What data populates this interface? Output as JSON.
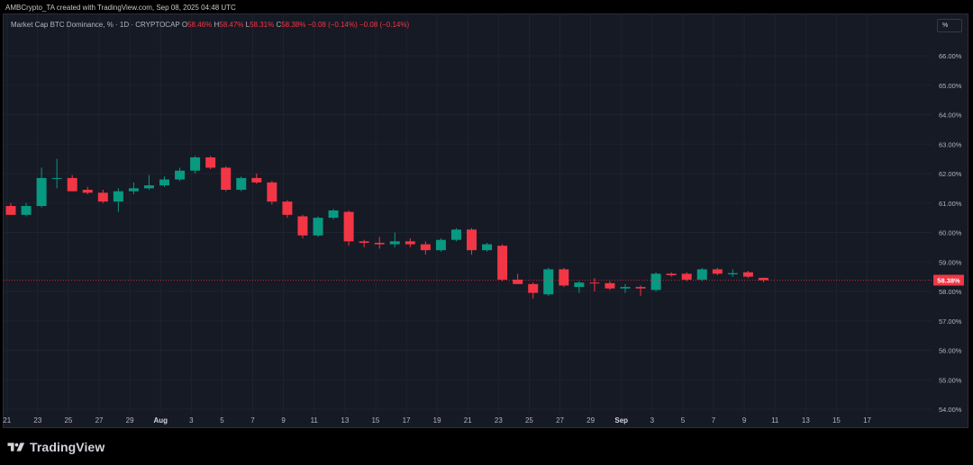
{
  "header": {
    "caption": "AMBCrypto_TA created with TradingView.com, Sep 08, 2025 04:48 UTC"
  },
  "legend": {
    "symbol": "Market Cap BTC Dominance, % · 1D · CRYPTOCAP",
    "o_label": "O",
    "o_value": "58.46%",
    "h_label": "H",
    "h_value": "58.47%",
    "l_label": "L",
    "l_value": "58.31%",
    "c_label": "C",
    "c_value": "58.38%",
    "change": "−0.08 (−0.14%)",
    "change2": "−0.08 (−0.14%)"
  },
  "unit_button": "%",
  "brand": {
    "name": "TradingView"
  },
  "colors": {
    "up": "#089981",
    "down": "#f23645",
    "background": "#161a25",
    "grid": "#1f2330"
  },
  "chart_data": {
    "type": "candlestick",
    "title": "Market Cap BTC Dominance, % · 1D · CRYPTOCAP",
    "ylabel": "%",
    "ylim": [
      53.9,
      66.7
    ],
    "y_ticks": [
      "66.00%",
      "65.00%",
      "64.00%",
      "63.00%",
      "62.00%",
      "61.00%",
      "60.00%",
      "59.00%",
      "58.00%",
      "57.00%",
      "56.00%",
      "55.00%",
      "54.00%"
    ],
    "x_ticks": [
      "21",
      "23",
      "25",
      "27",
      "29",
      "Aug",
      "3",
      "5",
      "7",
      "9",
      "11",
      "13",
      "15",
      "17",
      "19",
      "21",
      "23",
      "25",
      "27",
      "29",
      "Sep",
      "3",
      "5",
      "7",
      "9",
      "11",
      "13",
      "15",
      "17"
    ],
    "last_price_label": "58.38%",
    "candles": [
      {
        "o": 60.9,
        "h": 61.0,
        "l": 60.6,
        "c": 60.6
      },
      {
        "o": 60.6,
        "h": 61.0,
        "l": 60.55,
        "c": 60.9
      },
      {
        "o": 60.9,
        "h": 62.2,
        "l": 60.85,
        "c": 61.85
      },
      {
        "o": 61.85,
        "h": 62.5,
        "l": 61.5,
        "c": 61.85
      },
      {
        "o": 61.85,
        "h": 61.95,
        "l": 61.4,
        "c": 61.4
      },
      {
        "o": 61.45,
        "h": 61.55,
        "l": 61.3,
        "c": 61.35
      },
      {
        "o": 61.35,
        "h": 61.45,
        "l": 61.0,
        "c": 61.05
      },
      {
        "o": 61.05,
        "h": 61.5,
        "l": 60.7,
        "c": 61.4
      },
      {
        "o": 61.4,
        "h": 61.7,
        "l": 61.3,
        "c": 61.5
      },
      {
        "o": 61.5,
        "h": 61.95,
        "l": 61.45,
        "c": 61.6
      },
      {
        "o": 61.6,
        "h": 61.9,
        "l": 61.55,
        "c": 61.8
      },
      {
        "o": 61.8,
        "h": 62.2,
        "l": 61.75,
        "c": 62.1
      },
      {
        "o": 62.1,
        "h": 62.6,
        "l": 62.0,
        "c": 62.55
      },
      {
        "o": 62.55,
        "h": 62.6,
        "l": 62.15,
        "c": 62.2
      },
      {
        "o": 62.2,
        "h": 62.25,
        "l": 61.4,
        "c": 61.45
      },
      {
        "o": 61.45,
        "h": 61.9,
        "l": 61.4,
        "c": 61.85
      },
      {
        "o": 61.85,
        "h": 62.0,
        "l": 61.65,
        "c": 61.7
      },
      {
        "o": 61.7,
        "h": 61.75,
        "l": 60.95,
        "c": 61.05
      },
      {
        "o": 61.05,
        "h": 61.1,
        "l": 60.5,
        "c": 60.6
      },
      {
        "o": 60.55,
        "h": 60.6,
        "l": 59.8,
        "c": 59.9
      },
      {
        "o": 59.9,
        "h": 60.55,
        "l": 59.85,
        "c": 60.5
      },
      {
        "o": 60.5,
        "h": 60.8,
        "l": 60.45,
        "c": 60.75
      },
      {
        "o": 60.7,
        "h": 60.75,
        "l": 59.55,
        "c": 59.7
      },
      {
        "o": 59.7,
        "h": 59.75,
        "l": 59.5,
        "c": 59.65
      },
      {
        "o": 59.65,
        "h": 59.85,
        "l": 59.45,
        "c": 59.6
      },
      {
        "o": 59.6,
        "h": 60.0,
        "l": 59.5,
        "c": 59.7
      },
      {
        "o": 59.7,
        "h": 59.8,
        "l": 59.5,
        "c": 59.6
      },
      {
        "o": 59.6,
        "h": 59.7,
        "l": 59.25,
        "c": 59.4
      },
      {
        "o": 59.4,
        "h": 59.8,
        "l": 59.35,
        "c": 59.75
      },
      {
        "o": 59.75,
        "h": 60.15,
        "l": 59.7,
        "c": 60.1
      },
      {
        "o": 60.1,
        "h": 60.15,
        "l": 59.25,
        "c": 59.4
      },
      {
        "o": 59.4,
        "h": 59.65,
        "l": 59.35,
        "c": 59.6
      },
      {
        "o": 59.55,
        "h": 59.6,
        "l": 58.35,
        "c": 58.4
      },
      {
        "o": 58.4,
        "h": 58.6,
        "l": 58.25,
        "c": 58.25
      },
      {
        "o": 58.25,
        "h": 58.3,
        "l": 57.75,
        "c": 57.95
      },
      {
        "o": 57.9,
        "h": 58.8,
        "l": 57.85,
        "c": 58.75
      },
      {
        "o": 58.75,
        "h": 58.8,
        "l": 58.15,
        "c": 58.2
      },
      {
        "o": 58.15,
        "h": 58.35,
        "l": 57.95,
        "c": 58.3
      },
      {
        "o": 58.3,
        "h": 58.45,
        "l": 58.0,
        "c": 58.28
      },
      {
        "o": 58.28,
        "h": 58.35,
        "l": 58.05,
        "c": 58.1
      },
      {
        "o": 58.1,
        "h": 58.25,
        "l": 57.95,
        "c": 58.15
      },
      {
        "o": 58.15,
        "h": 58.2,
        "l": 57.85,
        "c": 58.1
      },
      {
        "o": 58.05,
        "h": 58.65,
        "l": 58.0,
        "c": 58.6
      },
      {
        "o": 58.6,
        "h": 58.65,
        "l": 58.5,
        "c": 58.55
      },
      {
        "o": 58.6,
        "h": 58.65,
        "l": 58.35,
        "c": 58.4
      },
      {
        "o": 58.4,
        "h": 58.8,
        "l": 58.35,
        "c": 58.75
      },
      {
        "o": 58.75,
        "h": 58.8,
        "l": 58.55,
        "c": 58.6
      },
      {
        "o": 58.58,
        "h": 58.75,
        "l": 58.5,
        "c": 58.62
      },
      {
        "o": 58.65,
        "h": 58.7,
        "l": 58.45,
        "c": 58.5
      },
      {
        "o": 58.46,
        "h": 58.47,
        "l": 58.31,
        "c": 58.38
      }
    ]
  }
}
